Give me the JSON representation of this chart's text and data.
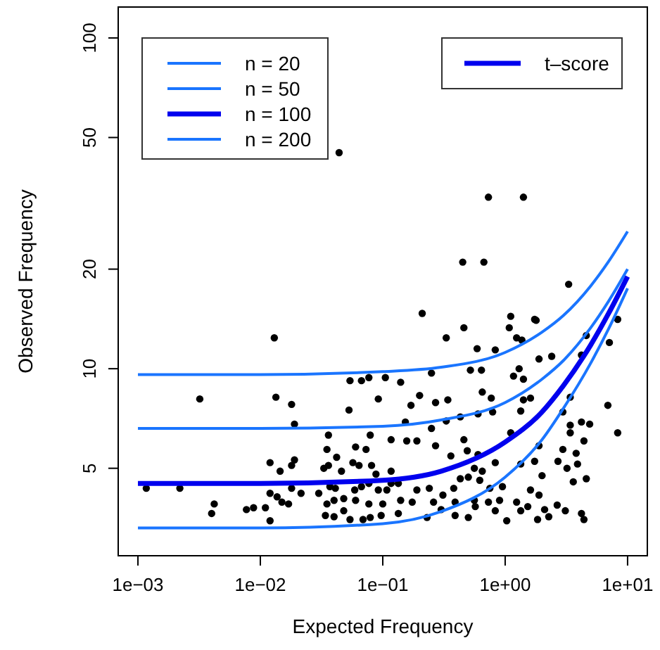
{
  "chart_data": {
    "type": "scatter",
    "xlabel": "Expected Frequency",
    "ylabel": "Observed Frequency",
    "log": "xy",
    "grid": false,
    "legend": "top left",
    "xlim": [
      0.00069,
      14.5
    ],
    "ylim": [
      2.72,
      124
    ],
    "xticks": [
      {
        "value": 0.001,
        "label": "1e−03"
      },
      {
        "value": 0.01,
        "label": "1e−02"
      },
      {
        "value": 0.1,
        "label": "1e−01"
      },
      {
        "value": 1,
        "label": "1e+00"
      },
      {
        "value": 10,
        "label": "1e+01"
      }
    ],
    "yticks": [
      5,
      10,
      20,
      50,
      100
    ],
    "annotations": [
      "t–score"
    ],
    "series": [
      {
        "marker": "circle",
        "color": "#000000",
        "x": [
          0.73,
          1.41,
          0.45,
          0.67,
          3.3,
          0.21,
          1.11,
          1.79,
          8.3,
          0.044,
          0.013,
          0.0032,
          0.0134,
          0.018,
          0.019,
          0.054,
          0.067,
          0.077,
          0.105,
          0.053,
          0.092,
          0.036,
          0.079,
          0.117,
          0.035,
          0.06,
          0.073,
          0.042,
          0.012,
          0.019,
          0.018,
          0.033,
          0.036,
          0.057,
          0.064,
          0.081,
          0.0145,
          0.046,
          0.088,
          0.117,
          0.00117,
          0.0022,
          0.018,
          0.037,
          0.041,
          0.059,
          0.067,
          0.077,
          0.092,
          0.108,
          0.0042,
          0.004,
          0.0077,
          0.0088,
          0.011,
          0.012,
          0.012,
          0.0137,
          0.015,
          0.017,
          0.0215,
          0.03,
          0.035,
          0.04,
          0.048,
          0.06,
          0.077,
          0.1,
          0.034,
          0.04,
          0.048,
          0.054,
          0.069,
          0.079,
          0.097,
          0.117,
          0.46,
          0.33,
          1.08,
          1.24,
          1.74,
          1.37,
          0.59,
          0.83,
          1.89,
          2.4,
          4.2,
          4.6,
          7.1,
          0.14,
          0.25,
          0.52,
          0.64,
          1.3,
          1.17,
          1.41,
          0.2,
          0.27,
          0.34,
          0.17,
          0.65,
          0.77,
          1.41,
          1.61,
          1.34,
          0.6,
          0.79,
          0.43,
          0.33,
          0.153,
          3.4,
          6.9,
          2.96,
          3.4,
          4.2,
          4.9,
          0.25,
          1.11,
          0.46,
          0.157,
          0.19,
          1.89,
          3.4,
          4.4,
          8.3,
          0.27,
          0.36,
          0.49,
          0.6,
          0.83,
          0.56,
          0.65,
          1.34,
          1.74,
          2.96,
          3.8,
          2.7,
          3.2,
          3.9,
          4.6,
          2.0,
          3.6,
          0.134,
          0.19,
          0.24,
          0.31,
          0.38,
          0.43,
          0.5,
          0.62,
          0.75,
          0.95,
          1.61,
          1.89,
          0.14,
          0.174,
          0.26,
          0.39,
          0.56,
          0.73,
          0.9,
          1.24,
          1.53,
          2.1,
          2.66,
          3.1,
          4.2,
          4.4,
          0.134,
          0.23,
          0.3,
          0.39,
          0.5,
          0.57,
          0.83,
          1.03,
          1.34,
          1.84,
          2.27
        ],
        "values": [
          33,
          33,
          21,
          21,
          18,
          14.7,
          14.4,
          14,
          14.1,
          45,
          12.4,
          8.1,
          8.2,
          7.8,
          6.8,
          9.2,
          9.2,
          9.4,
          9.4,
          7.5,
          8.1,
          6.3,
          6.3,
          6.1,
          5.7,
          5.8,
          5.7,
          5.4,
          5.2,
          5.3,
          5.1,
          5.0,
          5.1,
          5.2,
          5.1,
          5.1,
          4.9,
          4.9,
          4.8,
          4.9,
          4.35,
          4.35,
          4.35,
          4.4,
          4.35,
          4.3,
          4.4,
          4.5,
          4.3,
          4.3,
          3.9,
          3.65,
          3.75,
          3.8,
          3.8,
          3.47,
          4.2,
          4.1,
          3.95,
          3.9,
          4.2,
          4.2,
          3.9,
          4.0,
          4.05,
          4.0,
          3.9,
          3.9,
          3.6,
          3.57,
          3.72,
          3.5,
          3.5,
          3.55,
          3.6,
          4.5,
          13.3,
          12.4,
          13.3,
          12.4,
          14.1,
          12.2,
          11.5,
          11.4,
          10.7,
          10.9,
          11,
          12.6,
          12,
          9.1,
          9.7,
          9.9,
          9.9,
          10,
          9.5,
          9.3,
          8.3,
          7.9,
          8.05,
          7.75,
          8.5,
          8.15,
          8.05,
          8.15,
          7.45,
          7.3,
          7.4,
          7.15,
          6.95,
          6.9,
          8.2,
          7.75,
          7.4,
          6.75,
          6.9,
          6.8,
          6.6,
          6.4,
          6.1,
          6.05,
          6.05,
          5.85,
          6.4,
          6.05,
          6.4,
          5.85,
          5.45,
          5.65,
          5.5,
          5.2,
          5.0,
          4.9,
          5.15,
          5.25,
          5.7,
          5.55,
          5.25,
          5.0,
          5.15,
          4.65,
          4.75,
          4.55,
          4.5,
          4.3,
          4.35,
          4.15,
          4.35,
          4.65,
          4.7,
          4.6,
          4.35,
          4.4,
          4.3,
          4.15,
          4.0,
          3.95,
          3.95,
          3.95,
          4.0,
          3.95,
          4.0,
          3.95,
          3.83,
          3.75,
          3.87,
          3.72,
          3.65,
          3.5,
          3.65,
          3.55,
          3.75,
          3.6,
          3.55,
          3.83,
          3.72,
          3.47,
          3.72,
          3.5,
          3.57
        ]
      },
      {
        "type": "line",
        "name": "n = 20",
        "color": "#1a75ff",
        "x": [
          0.001,
          0.01,
          0.1,
          0.3,
          1,
          2,
          3,
          5,
          7,
          10
        ],
        "values": [
          9.6,
          9.6,
          9.8,
          10.1,
          11.2,
          12.9,
          14.5,
          17.8,
          21.1,
          26
        ]
      },
      {
        "type": "line",
        "name": "n = 50",
        "color": "#1a75ff",
        "x": [
          0.001,
          0.01,
          0.1,
          0.3,
          1,
          2,
          3,
          5,
          7,
          10
        ],
        "values": [
          6.6,
          6.6,
          6.7,
          7.0,
          7.9,
          9.3,
          10.6,
          13.3,
          16,
          20
        ]
      },
      {
        "type": "line",
        "name": "n = 100",
        "color": "#0000ee",
        "x": [
          0.001,
          0.01,
          0.1,
          0.3,
          1,
          2,
          3,
          5,
          7,
          10
        ],
        "values": [
          4.5,
          4.5,
          4.6,
          4.9,
          6.0,
          7.4,
          8.9,
          11.8,
          14.7,
          19
        ]
      },
      {
        "type": "line",
        "name": "n = 200",
        "color": "#1a75ff",
        "x": [
          0.001,
          0.01,
          0.1,
          0.3,
          1,
          2,
          3,
          5,
          7,
          10
        ],
        "values": [
          3.3,
          3.3,
          3.4,
          3.7,
          4.7,
          6.1,
          7.6,
          10.4,
          13.2,
          17.5
        ]
      }
    ]
  }
}
